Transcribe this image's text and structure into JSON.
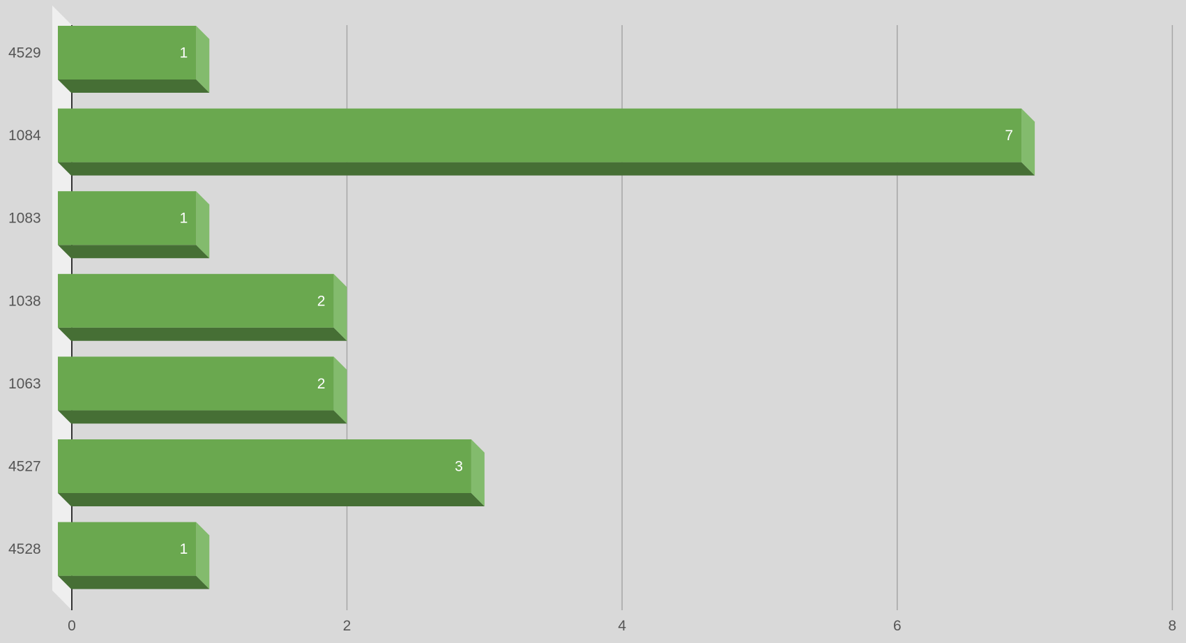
{
  "chart_data": {
    "type": "bar",
    "orientation": "horizontal",
    "style": "3d",
    "title": "",
    "xlabel": "",
    "ylabel": "",
    "categories": [
      "4529",
      "1084",
      "1083",
      "1038",
      "1063",
      "4527",
      "4528"
    ],
    "values": [
      1,
      7,
      1,
      2,
      2,
      3,
      1
    ],
    "xlim": [
      0,
      8
    ],
    "xticks": [
      "0",
      "2",
      "4",
      "6",
      "8"
    ],
    "data_labels": [
      "1",
      "7",
      "1",
      "2",
      "2",
      "3",
      "1"
    ],
    "grid": true,
    "legend": "none",
    "colors": {
      "background": "#d9d9d9",
      "wall": "#efefef",
      "bar_front": "#6aa84f",
      "bar_side": "#83bb6d",
      "bar_bottom": "#466f35",
      "gridline": "#a6a6a6",
      "axis": "#333333",
      "text": "#555555",
      "value_text": "#ffffff"
    }
  }
}
